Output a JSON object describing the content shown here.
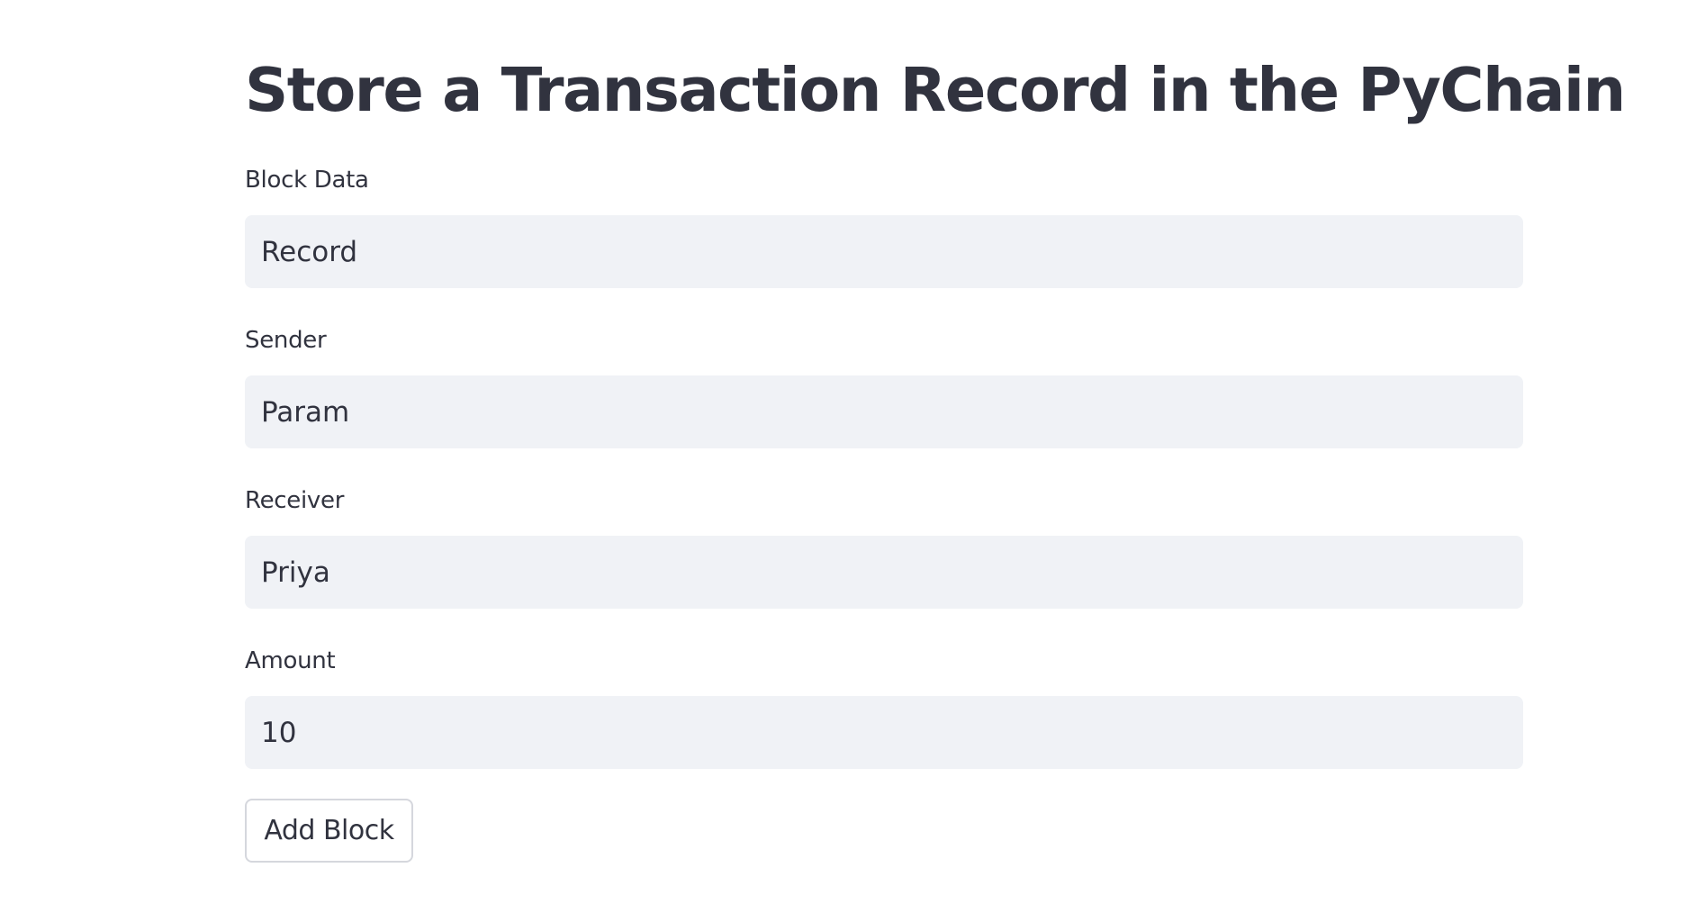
{
  "page": {
    "title": "Store a Transaction Record in the PyChain"
  },
  "form": {
    "fields": [
      {
        "label": "Block Data",
        "value": "Record"
      },
      {
        "label": "Sender",
        "value": "Param"
      },
      {
        "label": "Receiver",
        "value": "Priya"
      },
      {
        "label": "Amount",
        "value": "10"
      }
    ],
    "submit_label": "Add Block"
  },
  "colors": {
    "text": "#31333f",
    "input_background": "#f0f2f6",
    "button_border": "#d5d7dd",
    "page_background": "#ffffff"
  }
}
